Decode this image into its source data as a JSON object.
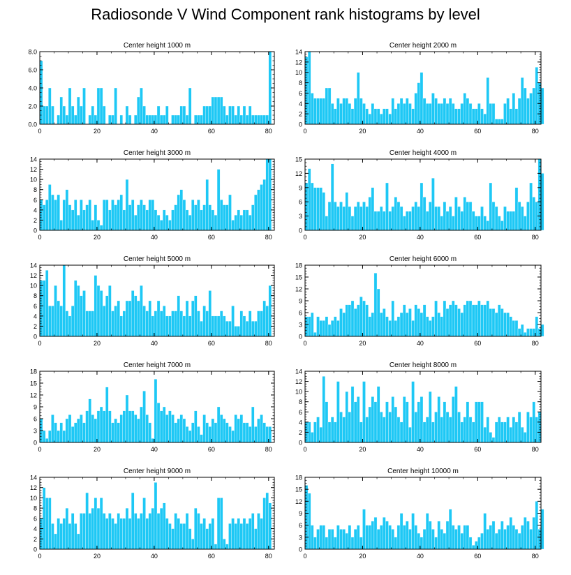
{
  "title": "Radiosonde V Wind Component rank histograms by level",
  "colors": {
    "bar": "#1ec8f5",
    "bar_edge": "#ffffff",
    "axis": "#000000"
  },
  "chart_data": [
    {
      "type": "bar",
      "title": "Center height 1000 m",
      "x_ticks": [
        0,
        20,
        40,
        60,
        80
      ],
      "y_ticks": [
        0,
        2,
        4,
        6,
        8
      ],
      "y_labels": [
        "0.0",
        "2.0",
        "4.0",
        "6.0",
        "8.0"
      ],
      "ylim": [
        0,
        8
      ],
      "xlim": [
        0,
        82
      ],
      "values": [
        7,
        2,
        2,
        4,
        2,
        0,
        1,
        3,
        2,
        1,
        4,
        2,
        1,
        3,
        2,
        4,
        0,
        1,
        2,
        1,
        4,
        4,
        2,
        0,
        1,
        1,
        4,
        0,
        1,
        0,
        2,
        1,
        0,
        1,
        3,
        4,
        2,
        1,
        1,
        1,
        1,
        2,
        1,
        1,
        2,
        0,
        1,
        1,
        1,
        2,
        2,
        1,
        4,
        0,
        1,
        1,
        1,
        2,
        2,
        2,
        3,
        3,
        3,
        3,
        2,
        1,
        2,
        2,
        1,
        2,
        1,
        2,
        1,
        2,
        1,
        1,
        1,
        1,
        1,
        1,
        8
      ]
    },
    {
      "type": "bar",
      "title": "Center height 2000 m",
      "x_ticks": [
        0,
        20,
        40,
        60,
        80
      ],
      "y_ticks": [
        0,
        2,
        4,
        6,
        8,
        10,
        12,
        14
      ],
      "y_labels": [
        "0",
        "2",
        "4",
        "6",
        "8",
        "10",
        "12",
        "14"
      ],
      "ylim": [
        0,
        14
      ],
      "xlim": [
        0,
        82
      ],
      "values": [
        13,
        14,
        6,
        5,
        5,
        5,
        5,
        7,
        7,
        4,
        3,
        5,
        4,
        5,
        5,
        4,
        3,
        5,
        10,
        5,
        4,
        3,
        2,
        4,
        3,
        3,
        2,
        3,
        3,
        2,
        5,
        3,
        4,
        5,
        4,
        5,
        4,
        3,
        6,
        8,
        10,
        5,
        4,
        4,
        6,
        5,
        4,
        4,
        5,
        4,
        5,
        4,
        3,
        3,
        4,
        6,
        5,
        4,
        3,
        3,
        4,
        3,
        2,
        9,
        4,
        4,
        1,
        1,
        1,
        4,
        5,
        3,
        6,
        3,
        5,
        9,
        7,
        5,
        6,
        7,
        11,
        8,
        7
      ]
    },
    {
      "type": "bar",
      "title": "Center height 3000 m",
      "x_ticks": [
        0,
        20,
        40,
        60,
        80
      ],
      "y_ticks": [
        0,
        2,
        4,
        6,
        8,
        10,
        12,
        14
      ],
      "y_labels": [
        "0",
        "2",
        "4",
        "6",
        "8",
        "10",
        "12",
        "14"
      ],
      "ylim": [
        0,
        14
      ],
      "xlim": [
        0,
        82
      ],
      "values": [
        6,
        5,
        6,
        9,
        7,
        6,
        7,
        2,
        6,
        8,
        5,
        4,
        6,
        3,
        6,
        4,
        5,
        6,
        2,
        5,
        2,
        1,
        6,
        6,
        4,
        6,
        5,
        6,
        7,
        4,
        10,
        5,
        6,
        3,
        5,
        6,
        5,
        4,
        6,
        6,
        4,
        3,
        2,
        4,
        3,
        2,
        4,
        5,
        7,
        8,
        6,
        4,
        3,
        6,
        5,
        6,
        4,
        5,
        10,
        5,
        4,
        3,
        12,
        6,
        5,
        5,
        7,
        2,
        3,
        4,
        3,
        4,
        4,
        3,
        5,
        7,
        8,
        9,
        10,
        14,
        14
      ]
    },
    {
      "type": "bar",
      "title": "Center height 4000 m",
      "x_ticks": [
        0,
        20,
        40,
        60,
        80
      ],
      "y_ticks": [
        0,
        3,
        6,
        9,
        12,
        15
      ],
      "y_labels": [
        "0",
        "3",
        "6",
        "9",
        "12",
        "15"
      ],
      "ylim": [
        0,
        15
      ],
      "xlim": [
        0,
        82
      ],
      "values": [
        10,
        13,
        10,
        9,
        9,
        9,
        8,
        3,
        6,
        14,
        6,
        5,
        6,
        5,
        8,
        5,
        3,
        5,
        6,
        5,
        6,
        5,
        7,
        9,
        4,
        4,
        5,
        4,
        10,
        4,
        5,
        7,
        6,
        5,
        3,
        4,
        4,
        5,
        6,
        5,
        10,
        7,
        4,
        6,
        11,
        5,
        5,
        3,
        6,
        4,
        5,
        3,
        7,
        5,
        4,
        7,
        6,
        6,
        4,
        3,
        3,
        5,
        3,
        2,
        10,
        6,
        5,
        3,
        2,
        5,
        4,
        4,
        4,
        9,
        6,
        5,
        3,
        6,
        10,
        7,
        6,
        15,
        12
      ]
    },
    {
      "type": "bar",
      "title": "Center height 5000 m",
      "x_ticks": [
        0,
        20,
        40,
        60,
        80
      ],
      "y_ticks": [
        0,
        2,
        4,
        6,
        8,
        10,
        12,
        14
      ],
      "y_labels": [
        "0",
        "2",
        "4",
        "6",
        "8",
        "10",
        "12",
        "14"
      ],
      "ylim": [
        0,
        14
      ],
      "xlim": [
        0,
        82
      ],
      "values": [
        11,
        11,
        13,
        6,
        6,
        10,
        7,
        6,
        14,
        5,
        4,
        6,
        11,
        10,
        8,
        9,
        5,
        5,
        5,
        12,
        10,
        9,
        6,
        8,
        10,
        5,
        6,
        7,
        4,
        5,
        7,
        7,
        9,
        8,
        7,
        10,
        6,
        5,
        7,
        4,
        5,
        7,
        5,
        6,
        4,
        4,
        5,
        5,
        8,
        5,
        4,
        7,
        4,
        7,
        8,
        5,
        3,
        6,
        5,
        9,
        4,
        4,
        4,
        5,
        4,
        3,
        3,
        6,
        2,
        2,
        5,
        4,
        3,
        5,
        3,
        3,
        5,
        5,
        7,
        6,
        10
      ]
    },
    {
      "type": "bar",
      "title": "Center height 6000 m",
      "x_ticks": [
        0,
        20,
        40,
        60,
        80
      ],
      "y_ticks": [
        0,
        3,
        6,
        9,
        12,
        15,
        18
      ],
      "y_labels": [
        "0",
        "3",
        "6",
        "9",
        "12",
        "15",
        "18"
      ],
      "ylim": [
        0,
        18
      ],
      "xlim": [
        0,
        82
      ],
      "values": [
        5,
        5,
        6,
        1,
        5,
        4,
        4,
        5,
        3,
        4,
        5,
        4,
        7,
        6,
        8,
        8,
        9,
        7,
        8,
        10,
        9,
        8,
        5,
        6,
        16,
        12,
        6,
        7,
        5,
        4,
        9,
        4,
        5,
        6,
        8,
        6,
        7,
        4,
        8,
        7,
        6,
        8,
        5,
        4,
        5,
        9,
        6,
        5,
        9,
        7,
        8,
        9,
        8,
        7,
        6,
        8,
        9,
        9,
        8,
        8,
        9,
        8,
        8,
        9,
        7,
        7,
        6,
        8,
        7,
        6,
        6,
        5,
        4,
        4,
        2,
        3,
        1,
        2,
        2,
        2,
        5,
        2,
        3
      ]
    },
    {
      "type": "bar",
      "title": "Center height 7000 m",
      "x_ticks": [
        0,
        20,
        40,
        60,
        80
      ],
      "y_ticks": [
        0,
        3,
        6,
        9,
        12,
        15,
        18
      ],
      "y_labels": [
        "0",
        "3",
        "6",
        "9",
        "12",
        "15",
        "18"
      ],
      "ylim": [
        0,
        18
      ],
      "xlim": [
        0,
        82
      ],
      "values": [
        6,
        3,
        1,
        3,
        7,
        5,
        3,
        5,
        3,
        6,
        7,
        4,
        5,
        6,
        7,
        5,
        8,
        11,
        7,
        6,
        8,
        9,
        8,
        14,
        8,
        5,
        6,
        5,
        7,
        8,
        12,
        8,
        8,
        7,
        6,
        9,
        13,
        7,
        5,
        1,
        16,
        10,
        8,
        9,
        7,
        8,
        7,
        5,
        6,
        7,
        6,
        4,
        3,
        5,
        8,
        4,
        2,
        7,
        5,
        4,
        6,
        5,
        9,
        7,
        6,
        5,
        4,
        3,
        7,
        6,
        7,
        5,
        5,
        4,
        9,
        4,
        6,
        7,
        5,
        4,
        4
      ]
    },
    {
      "type": "bar",
      "title": "Center height 8000 m",
      "x_ticks": [
        0,
        20,
        40,
        60,
        80
      ],
      "y_ticks": [
        0,
        2,
        4,
        6,
        8,
        10,
        12,
        14
      ],
      "y_labels": [
        "0",
        "2",
        "4",
        "6",
        "8",
        "10",
        "12",
        "14"
      ],
      "ylim": [
        0,
        14
      ],
      "xlim": [
        0,
        82
      ],
      "values": [
        4,
        4,
        2,
        4,
        5,
        3,
        13,
        8,
        4,
        5,
        4,
        12,
        6,
        5,
        10,
        6,
        11,
        8,
        9,
        4,
        12,
        5,
        7,
        9,
        8,
        11,
        6,
        5,
        8,
        6,
        9,
        7,
        5,
        4,
        9,
        8,
        3,
        12,
        6,
        8,
        9,
        4,
        5,
        10,
        4,
        6,
        9,
        5,
        8,
        6,
        5,
        9,
        11,
        6,
        4,
        5,
        8,
        5,
        4,
        8,
        8,
        8,
        3,
        5,
        2,
        1,
        4,
        5,
        4,
        4,
        5,
        3,
        5,
        4,
        6,
        3,
        2,
        6,
        5,
        8,
        5,
        6
      ]
    },
    {
      "type": "bar",
      "title": "Center height 9000 m",
      "x_ticks": [
        0,
        20,
        40,
        60,
        80
      ],
      "y_ticks": [
        0,
        2,
        4,
        6,
        8,
        10,
        12,
        14
      ],
      "y_labels": [
        "0",
        "2",
        "4",
        "6",
        "8",
        "10",
        "12",
        "14"
      ],
      "ylim": [
        0,
        14
      ],
      "xlim": [
        0,
        82
      ],
      "values": [
        6,
        12,
        10,
        10,
        5,
        3,
        6,
        5,
        6,
        8,
        5,
        7,
        5,
        3,
        7,
        7,
        11,
        7,
        8,
        10,
        8,
        10,
        7,
        6,
        7,
        6,
        5,
        7,
        6,
        6,
        8,
        6,
        11,
        7,
        6,
        7,
        10,
        6,
        7,
        8,
        13,
        7,
        8,
        9,
        6,
        5,
        4,
        7,
        6,
        5,
        5,
        7,
        4,
        2,
        8,
        7,
        5,
        6,
        4,
        5,
        6,
        1,
        10,
        10,
        2,
        1,
        5,
        6,
        5,
        6,
        5,
        6,
        5,
        6,
        7,
        4,
        7,
        6,
        10,
        11,
        9
      ]
    },
    {
      "type": "bar",
      "title": "Center height 10000 m",
      "x_ticks": [
        0,
        20,
        40,
        60,
        80
      ],
      "y_ticks": [
        0,
        3,
        6,
        9,
        12,
        15,
        18
      ],
      "y_labels": [
        "0",
        "3",
        "6",
        "9",
        "12",
        "15",
        "18"
      ],
      "ylim": [
        0,
        18
      ],
      "xlim": [
        0,
        82
      ],
      "values": [
        16,
        14,
        6,
        3,
        5,
        6,
        6,
        3,
        5,
        5,
        3,
        6,
        5,
        5,
        4,
        6,
        3,
        5,
        6,
        3,
        10,
        6,
        6,
        7,
        8,
        5,
        6,
        8,
        7,
        6,
        5,
        3,
        6,
        9,
        6,
        7,
        5,
        9,
        6,
        4,
        3,
        5,
        9,
        7,
        5,
        3,
        7,
        5,
        4,
        7,
        10,
        6,
        5,
        6,
        4,
        6,
        6,
        3,
        1,
        2,
        3,
        4,
        9,
        5,
        6,
        7,
        4,
        5,
        7,
        5,
        6,
        8,
        6,
        5,
        4,
        6,
        8,
        7,
        5,
        8,
        12,
        5,
        10
      ]
    }
  ]
}
